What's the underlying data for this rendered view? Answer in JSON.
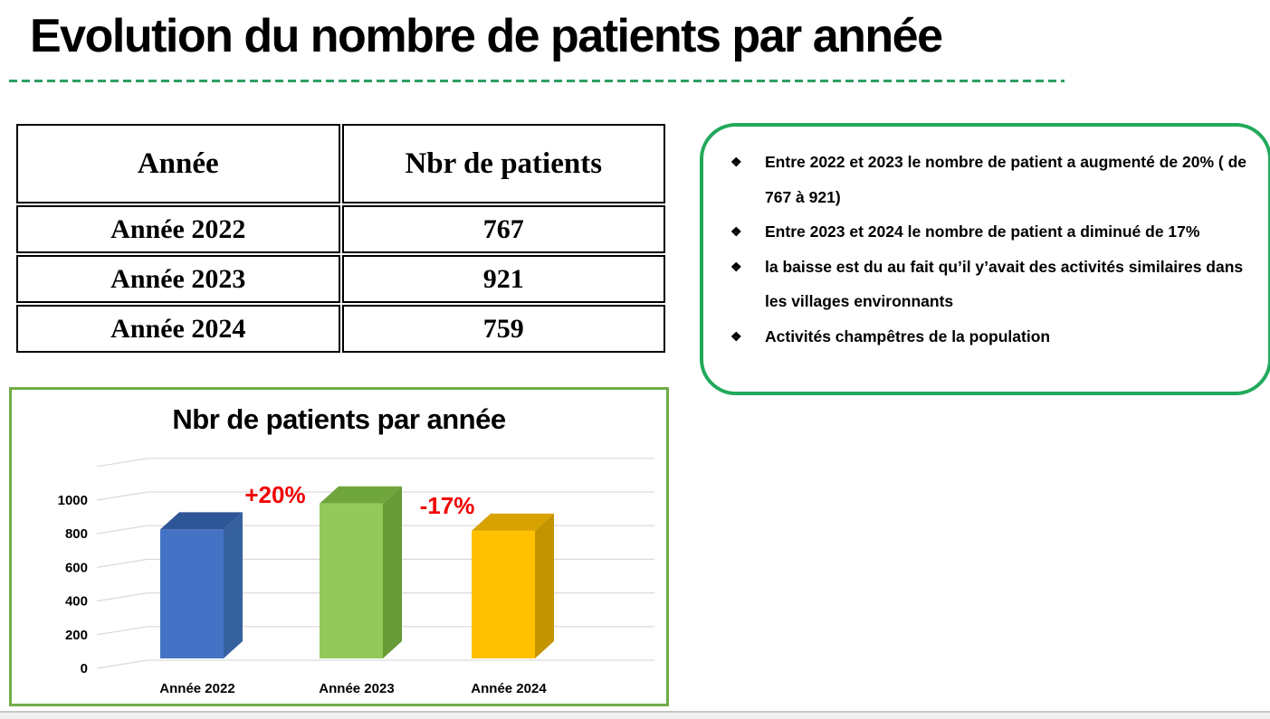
{
  "slide": {
    "title": "Evolution du nombre de patients par année"
  },
  "table": {
    "headers": [
      "Année",
      "Nbr de patients"
    ],
    "rows": [
      [
        "Année 2022",
        "767"
      ],
      [
        "Année 2023",
        "921"
      ],
      [
        "Année 2024",
        "759"
      ]
    ]
  },
  "notes": {
    "bullet_icon": "❖",
    "items": [
      "Entre 2022 et 2023 le nombre de patient a augmenté de 20% ( de 767 à  921)",
      "Entre 2023 et 2024 le nombre de patient a diminué de 17%",
      " la baisse est du au fait qu’il y’avait des activités similaires dans les villages environnants",
      "Activités champêtres de la population"
    ]
  },
  "colors": {
    "title_underline_green": "#2E9E62",
    "notes_border_green": "#22A95B",
    "chart_border_green": "#70AD47",
    "grid_gray": "#D9D9D9",
    "annotation_red": "#F20000"
  },
  "chart_data": {
    "type": "bar",
    "style": "3d-column",
    "title": "Nbr de patients par année",
    "categories": [
      "Année 2022",
      "Année 2023",
      "Année 2024"
    ],
    "values": [
      767,
      921,
      759
    ],
    "xlabel": "",
    "ylabel": "",
    "ylim": [
      0,
      1200
    ],
    "yticks": [
      0,
      200,
      400,
      600,
      800,
      1000
    ],
    "grid": "on",
    "legend": "none",
    "series_colors": [
      {
        "front": "#4472C4",
        "top": "#2E5596",
        "side": "#35619E"
      },
      {
        "front": "#92C95A",
        "top": "#6FA63C",
        "side": "#669B37"
      },
      {
        "front": "#FFC000",
        "top": "#D8A200",
        "side": "#C49300"
      }
    ],
    "annotations": [
      {
        "text": "+20%",
        "x": 304,
        "y": 556
      },
      {
        "text": "-17%",
        "x": 494,
        "y": 568
      }
    ]
  }
}
